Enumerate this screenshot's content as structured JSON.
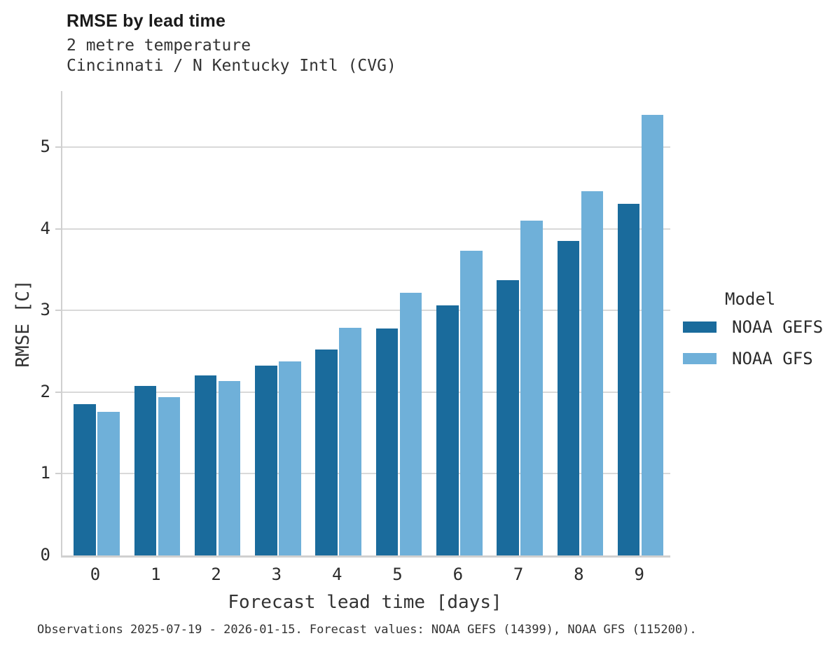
{
  "header": {
    "title": "RMSE by lead time",
    "subtitle1": "2 metre temperature",
    "subtitle2": "Cincinnati / N Kentucky Intl (CVG)"
  },
  "chart_data": {
    "type": "bar",
    "title": "RMSE by lead time",
    "subtitle": [
      "2 metre temperature",
      "Cincinnati / N Kentucky Intl (CVG)"
    ],
    "categories": [
      "0",
      "1",
      "2",
      "3",
      "4",
      "5",
      "6",
      "7",
      "8",
      "9"
    ],
    "series": [
      {
        "name": "NOAA GEFS",
        "color": "#1a6b9c",
        "values": [
          1.85,
          2.08,
          2.21,
          2.33,
          2.52,
          2.78,
          3.06,
          3.37,
          3.85,
          4.31
        ]
      },
      {
        "name": "NOAA GFS",
        "color": "#6fb0d9",
        "values": [
          1.76,
          1.94,
          2.14,
          2.38,
          2.79,
          3.22,
          3.73,
          4.1,
          4.46,
          5.4
        ]
      }
    ],
    "xlabel": "Forecast lead time [days]",
    "ylabel": "RMSE [C]",
    "ylim": [
      0,
      5.69
    ],
    "yticks": [
      0,
      1,
      2,
      3,
      4,
      5
    ],
    "grid": "horizontal-only",
    "legend": {
      "title": "Model",
      "position": "right-middle"
    }
  },
  "legend": {
    "title": "Model",
    "entries": [
      {
        "label": "NOAA GEFS",
        "color": "#1a6b9c"
      },
      {
        "label": "NOAA GFS",
        "color": "#6fb0d9"
      }
    ]
  },
  "caption": "Observations 2025-07-19 - 2026-01-15. Forecast values: NOAA GEFS (14399), NOAA GFS (115200)."
}
